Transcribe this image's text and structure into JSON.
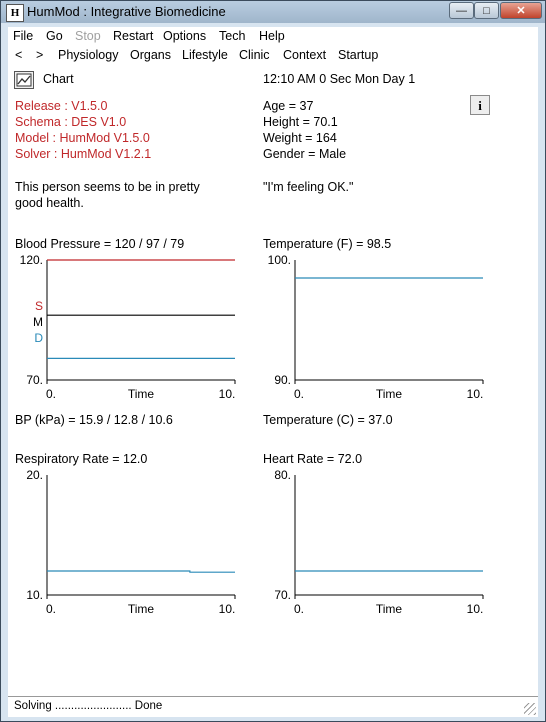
{
  "window": {
    "title": "HumMod : Integrative Biomedicine",
    "icon": "app-logo-icon"
  },
  "menu": {
    "file": "File",
    "go": "Go",
    "stop": "Stop",
    "restart": "Restart",
    "options": "Options",
    "tech": "Tech",
    "help": "Help"
  },
  "toolbar": {
    "back": "<",
    "forward": ">",
    "physiology": "Physiology",
    "organs": "Organs",
    "lifestyle": "Lifestyle",
    "clinic": "Clinic",
    "context": "Context",
    "startup": "Startup"
  },
  "chart_button": {
    "label": "Chart",
    "icon": "chart-icon"
  },
  "clock": "12:10 AM  0 Sec Mon Day 1",
  "release": "Release : V1.5.0",
  "schema": "Schema : DES V1.0",
  "model": "Model : HumMod V1.5.0",
  "solver": "Solver : HumMod V1.2.1",
  "age": "Age =  37",
  "height": "Height =  70.1",
  "weight": "Weight =  164",
  "gender": "Gender =  Male",
  "info_button": "i",
  "health_line1": "This person seems to be in pretty",
  "health_line2": "good health.",
  "feeling": "\"I'm feeling OK.\"",
  "bp_label": "Blood Pressure =  120   / 97   / 79",
  "bp_kpa": "BP (kPa) =  15.9   / 12.8  / 10.6",
  "temp_f": "Temperature (F) =   98.5",
  "temp_c": "Temperature (C) =   37.0",
  "resp_rate": "Respiratory Rate =  12.0",
  "heart_rate": "Heart Rate =  72.0",
  "status": "Solving ........................ Done",
  "colors": {
    "systolic": "#c0282a",
    "mean": "#000000",
    "diastolic": "#2a8ab8",
    "line": "#2a8ab8"
  },
  "chart_data": [
    {
      "type": "line",
      "ylim": [
        70,
        120
      ],
      "xlim": [
        0,
        10
      ],
      "xlabel": "Time",
      "y_ticks": [
        "120.",
        "70."
      ],
      "x_ticks": [
        "0.",
        "10."
      ],
      "series_labels": [
        "S",
        "M",
        "D"
      ],
      "series": [
        {
          "name": "S",
          "x": [
            0,
            10
          ],
          "y": [
            120,
            120
          ],
          "color": "#c0282a"
        },
        {
          "name": "M",
          "x": [
            0,
            10
          ],
          "y": [
            97,
            97
          ],
          "color": "#000000"
        },
        {
          "name": "D",
          "x": [
            0,
            10
          ],
          "y": [
            79,
            79
          ],
          "color": "#2a8ab8"
        }
      ]
    },
    {
      "type": "line",
      "ylim": [
        90,
        100
      ],
      "xlim": [
        0,
        10
      ],
      "xlabel": "Time",
      "y_ticks": [
        "100.",
        "90."
      ],
      "x_ticks": [
        "0.",
        "10."
      ],
      "series": [
        {
          "x": [
            0,
            10
          ],
          "y": [
            98.5,
            98.5
          ],
          "color": "#2a8ab8"
        }
      ]
    },
    {
      "type": "line",
      "ylim": [
        10,
        20
      ],
      "xlim": [
        0,
        10
      ],
      "xlabel": "Time",
      "y_ticks": [
        "20.",
        "10."
      ],
      "x_ticks": [
        "0.",
        "10."
      ],
      "series": [
        {
          "x": [
            0,
            7.6,
            7.6,
            10
          ],
          "y": [
            12.0,
            12.0,
            11.9,
            11.9
          ],
          "color": "#2a8ab8"
        }
      ]
    },
    {
      "type": "line",
      "ylim": [
        70,
        80
      ],
      "xlim": [
        0,
        10
      ],
      "xlabel": "Time",
      "y_ticks": [
        "80.",
        "70."
      ],
      "x_ticks": [
        "0.",
        "10."
      ],
      "series": [
        {
          "x": [
            0,
            10
          ],
          "y": [
            72,
            72
          ],
          "color": "#2a8ab8"
        }
      ]
    }
  ]
}
